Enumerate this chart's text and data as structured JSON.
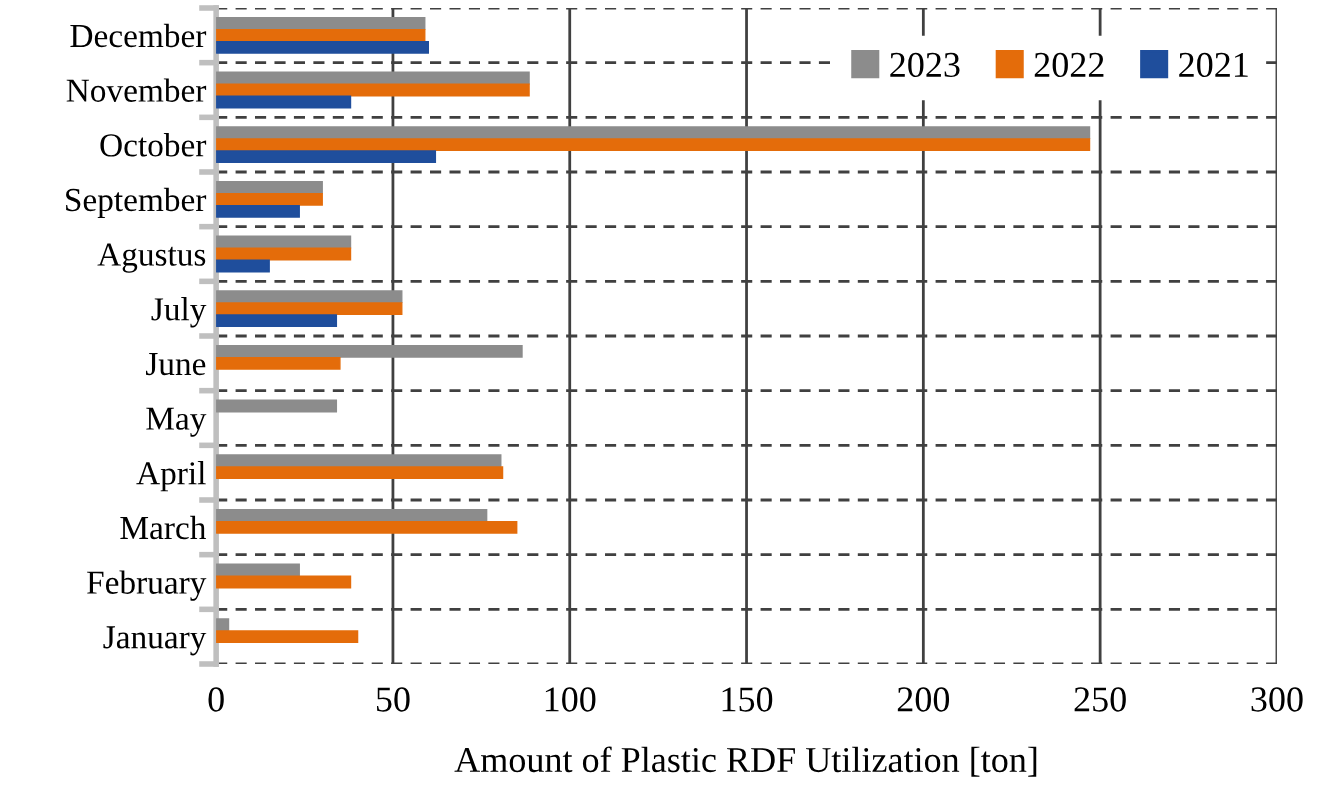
{
  "chart_data": {
    "type": "bar",
    "orientation": "horizontal",
    "xlabel": "Amount of Plastic RDF Utilization [ton]",
    "categories": [
      "December",
      "November",
      "October",
      "September",
      "Agustus",
      "July",
      "June",
      "May",
      "April",
      "March",
      "February",
      "January"
    ],
    "series": [
      {
        "name": "2023",
        "color": "#8c8c8c",
        "values": [
          59,
          88.5,
          247,
          30,
          38,
          52.5,
          86.5,
          34,
          80.5,
          76.5,
          23.5,
          3.5
        ]
      },
      {
        "name": "2022",
        "color": "#e46c0a",
        "values": [
          59,
          88.5,
          247,
          30,
          38,
          52.5,
          35,
          null,
          81,
          85,
          38,
          40
        ]
      },
      {
        "name": "2021",
        "color": "#1f4e9c",
        "values": [
          60,
          38,
          62,
          23.5,
          15,
          34,
          null,
          null,
          null,
          null,
          null,
          null
        ]
      }
    ],
    "xlim": [
      0,
      300
    ],
    "xticks": [
      0,
      50,
      100,
      150,
      200,
      250,
      300
    ],
    "grid": true,
    "legend": "top right"
  }
}
